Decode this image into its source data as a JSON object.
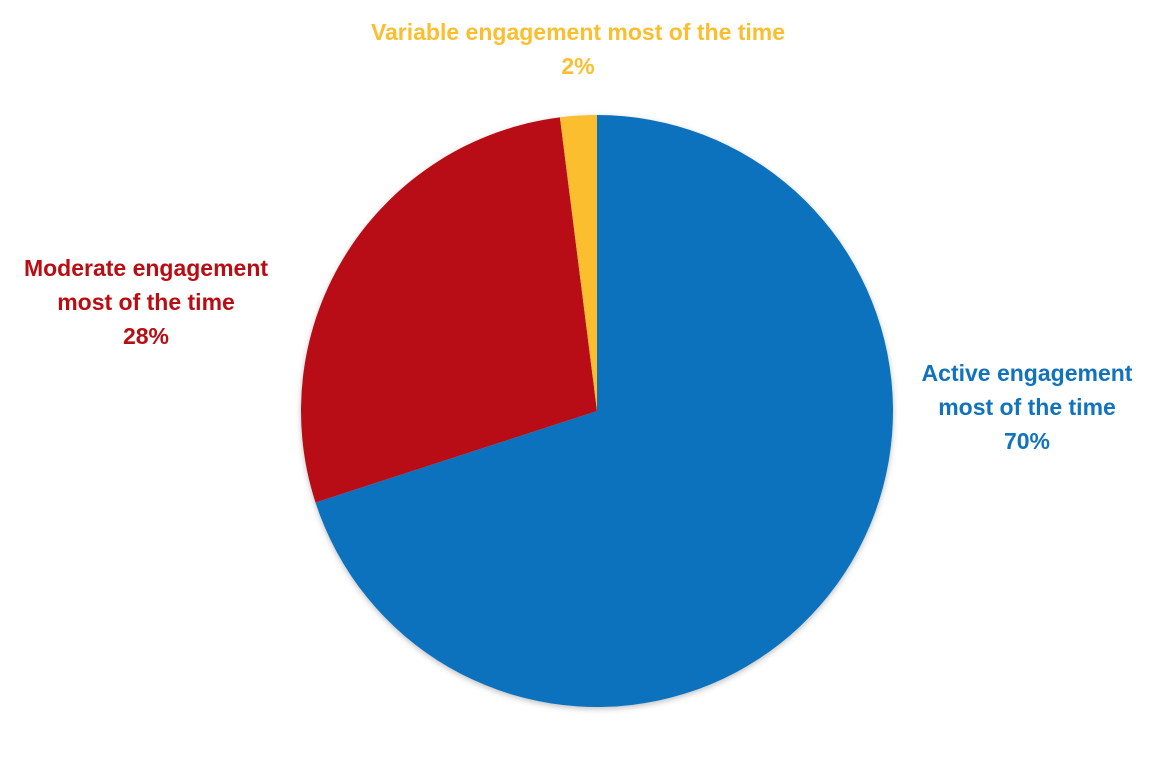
{
  "chart_data": {
    "type": "pie",
    "title": "",
    "slices": [
      {
        "label_lines": [
          "Active engagement",
          "most of the time"
        ],
        "value": 70,
        "value_label": "70%",
        "color": "#1172BD"
      },
      {
        "label_lines": [
          "Moderate engagement",
          "most of the time"
        ],
        "value": 28,
        "value_label": "28%",
        "color": "#B80D12"
      },
      {
        "label_lines": [
          "Variable engagement most of the time"
        ],
        "value": 2,
        "value_label": "2%",
        "color": "#FBBE2F"
      }
    ],
    "start_angle_deg": 0,
    "direction": "clockwise",
    "legend": "none"
  }
}
